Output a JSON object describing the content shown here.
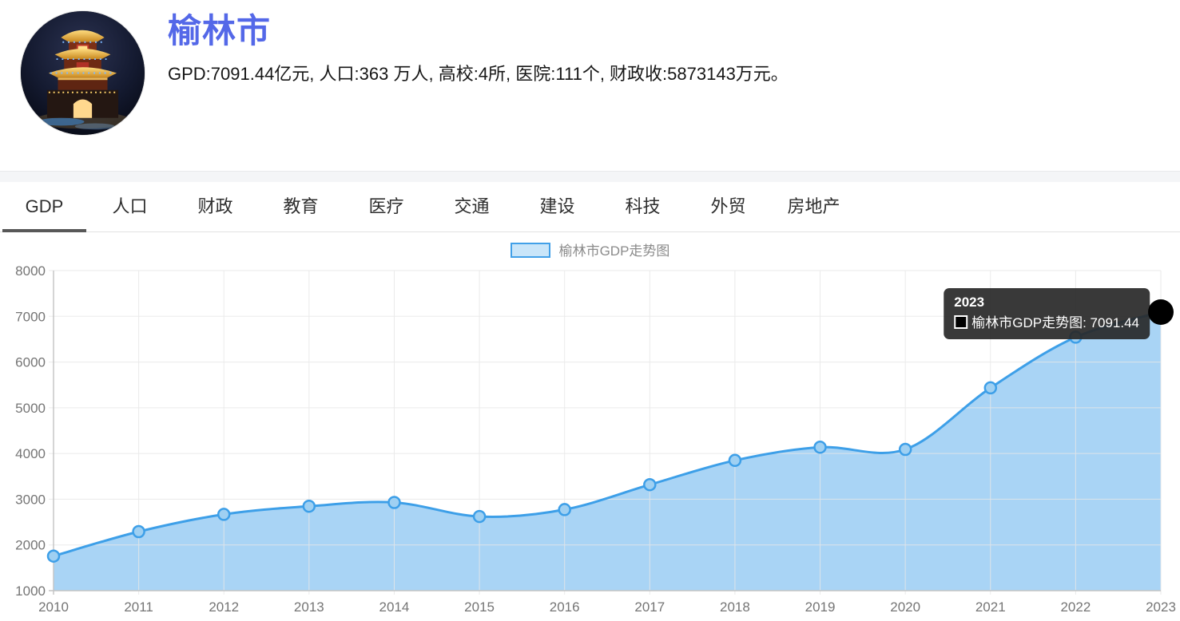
{
  "header": {
    "city_name": "榆林市",
    "summary": "GPD:7091.44亿元, 人口:363 万人, 高校:4所, 医院:111个, 财政收:5873143万元。"
  },
  "tabs": [
    {
      "label": "GDP",
      "active": true
    },
    {
      "label": "人口"
    },
    {
      "label": "财政"
    },
    {
      "label": "教育"
    },
    {
      "label": "医疗"
    },
    {
      "label": "交通"
    },
    {
      "label": "建设"
    },
    {
      "label": "科技"
    },
    {
      "label": "外贸"
    },
    {
      "label": "房地产"
    }
  ],
  "legend": {
    "label": "榆林市GDP走势图"
  },
  "tooltip": {
    "title": "2023",
    "series_label": "榆林市GDP走势图",
    "separator": ": ",
    "value": "7091.44"
  },
  "colors": {
    "title_blue": "#5468e8",
    "line_blue": "#3d9fe8",
    "area_fill": "#a9d4f5",
    "marker_fill": "#9fd0f2",
    "legend_swatch_border": "#42a0e8",
    "legend_swatch_fill": "#c9e5f9",
    "grid_line": "#e7e7e7",
    "axis_line": "#c3c3c3",
    "axis_text": "#757575",
    "tooltip_bg": "#282828",
    "highlight_dot": "#000000",
    "active_tab_underline": "#585858"
  },
  "chart_data": {
    "type": "area",
    "title": "榆林市GDP走势图",
    "x": [
      "2010",
      "2011",
      "2012",
      "2013",
      "2014",
      "2015",
      "2016",
      "2017",
      "2018",
      "2019",
      "2020",
      "2021",
      "2022",
      "2023"
    ],
    "series": [
      {
        "name": "榆林市GDP走势图",
        "values": [
          1756.67,
          2292.26,
          2668.76,
          2846.75,
          2929.62,
          2621.3,
          2773.05,
          3318.39,
          3848.62,
          4136.28,
          4089.66,
          5435.18,
          6543.65,
          7091.44
        ]
      }
    ],
    "ylim": [
      1000,
      8000
    ],
    "y_ticks": [
      8000,
      7000,
      6000,
      5000,
      4000,
      3000,
      2000,
      1000
    ],
    "grid": true,
    "legend_position": "top",
    "smooth": true,
    "highlight": {
      "x": "2023",
      "value": 7091.44
    }
  }
}
